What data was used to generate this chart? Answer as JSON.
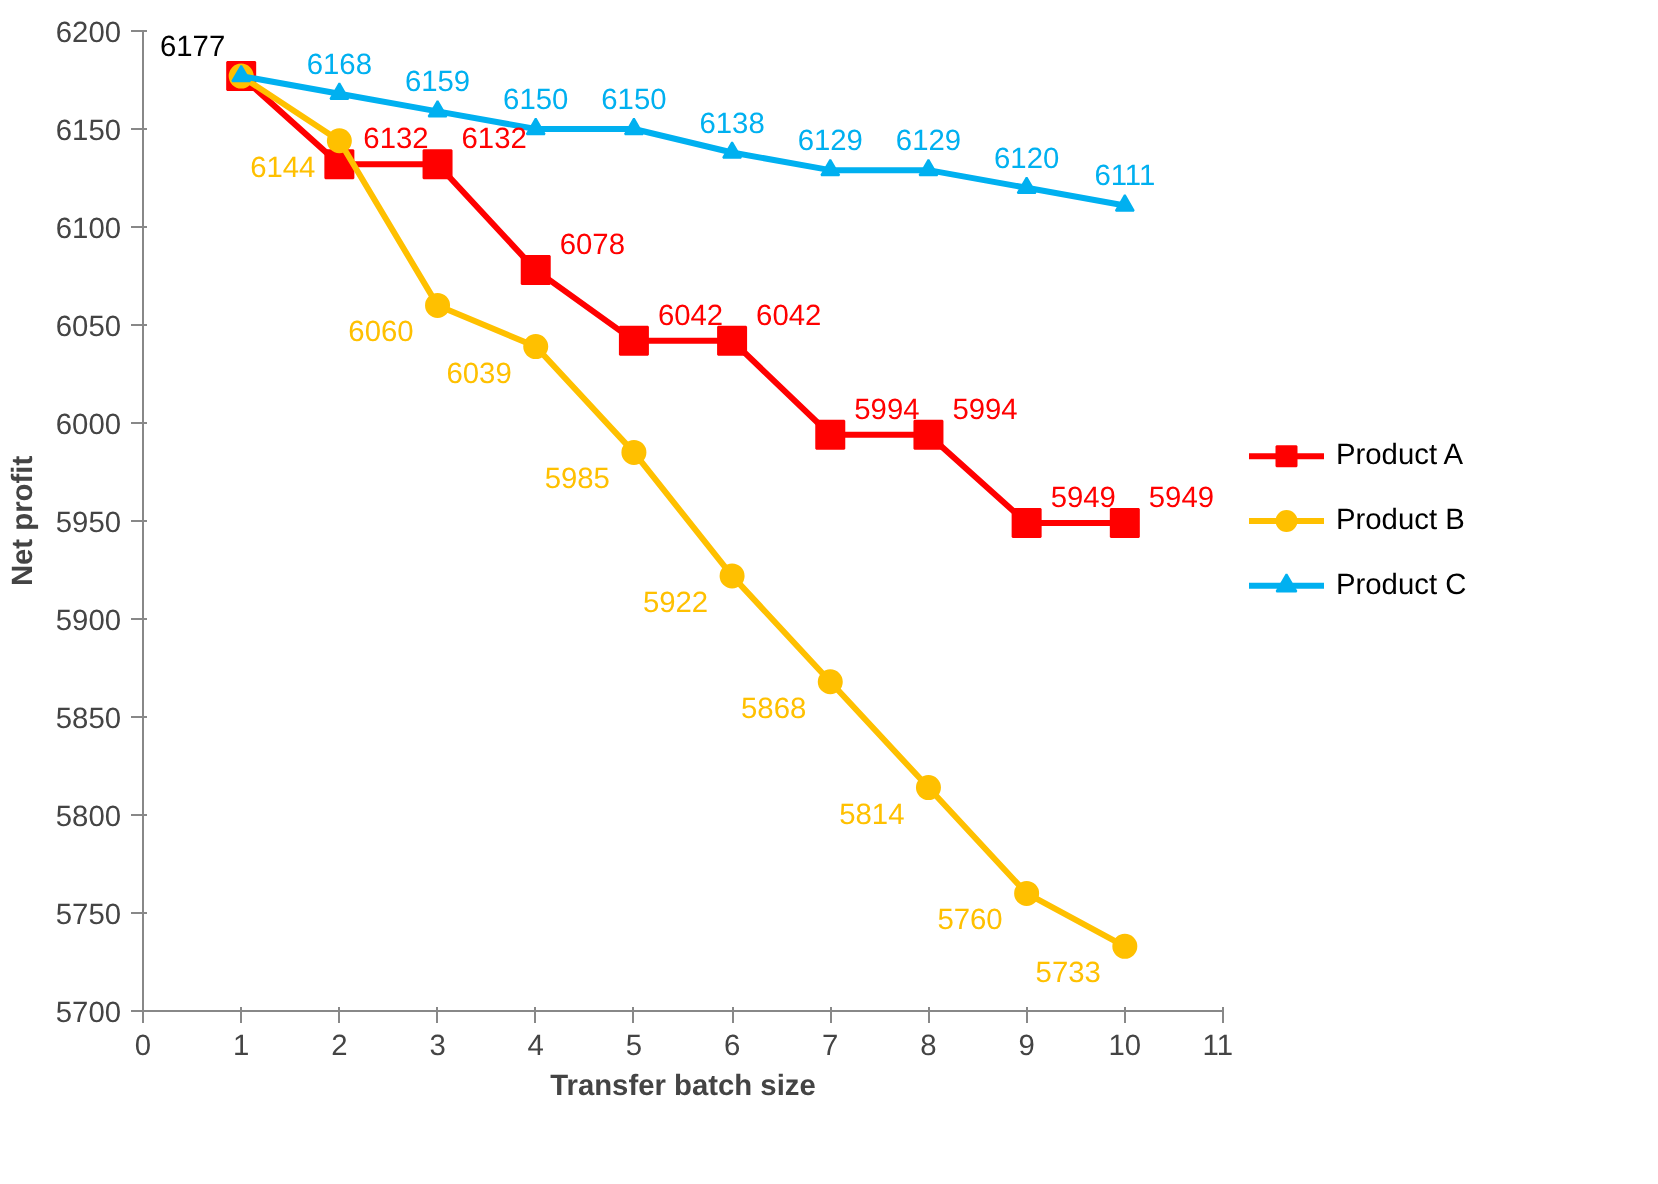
{
  "chart_data": {
    "type": "line",
    "xlabel": "Transfer batch size",
    "ylabel": "Net profit",
    "x": [
      1,
      2,
      3,
      4,
      5,
      6,
      7,
      8,
      9,
      10
    ],
    "series": [
      {
        "name": "Product A",
        "color": "#ff0000",
        "marker": "square",
        "values": [
          6177,
          6132,
          6132,
          6078,
          6042,
          6042,
          5994,
          5994,
          5949,
          5949
        ],
        "value_labels": [
          null,
          "6132",
          "6132",
          "6078",
          "6042",
          "6042",
          "5994",
          "5994",
          "5949",
          "5949"
        ]
      },
      {
        "name": "Product B",
        "color": "#ffc000",
        "marker": "circle",
        "values": [
          6177,
          6144,
          6060,
          6039,
          5985,
          5922,
          5868,
          5814,
          5760,
          5733
        ],
        "value_labels": [
          null,
          "6144",
          "6060",
          "6039",
          "5985",
          "5922",
          "5868",
          "5814",
          "5760",
          "5733"
        ]
      },
      {
        "name": "Product C",
        "color": "#00b0f0",
        "marker": "triangle",
        "values": [
          6177,
          6168,
          6159,
          6150,
          6150,
          6138,
          6129,
          6129,
          6120,
          6111
        ],
        "value_labels": [
          null,
          "6168",
          "6159",
          "6150",
          "6150",
          "6138",
          "6129",
          "6129",
          "6120",
          "6111"
        ]
      }
    ],
    "annotations": [
      {
        "text": "6177",
        "x": 1,
        "y": 6177
      }
    ],
    "xlim": [
      0,
      11
    ],
    "xticks": [
      0,
      1,
      2,
      3,
      4,
      5,
      6,
      7,
      8,
      9,
      10,
      11
    ],
    "ylim": [
      5700,
      6200
    ],
    "yticks": [
      5700,
      5750,
      5800,
      5850,
      5900,
      5950,
      6000,
      6050,
      6100,
      6150,
      6200
    ],
    "grid": false,
    "legend": "right"
  }
}
